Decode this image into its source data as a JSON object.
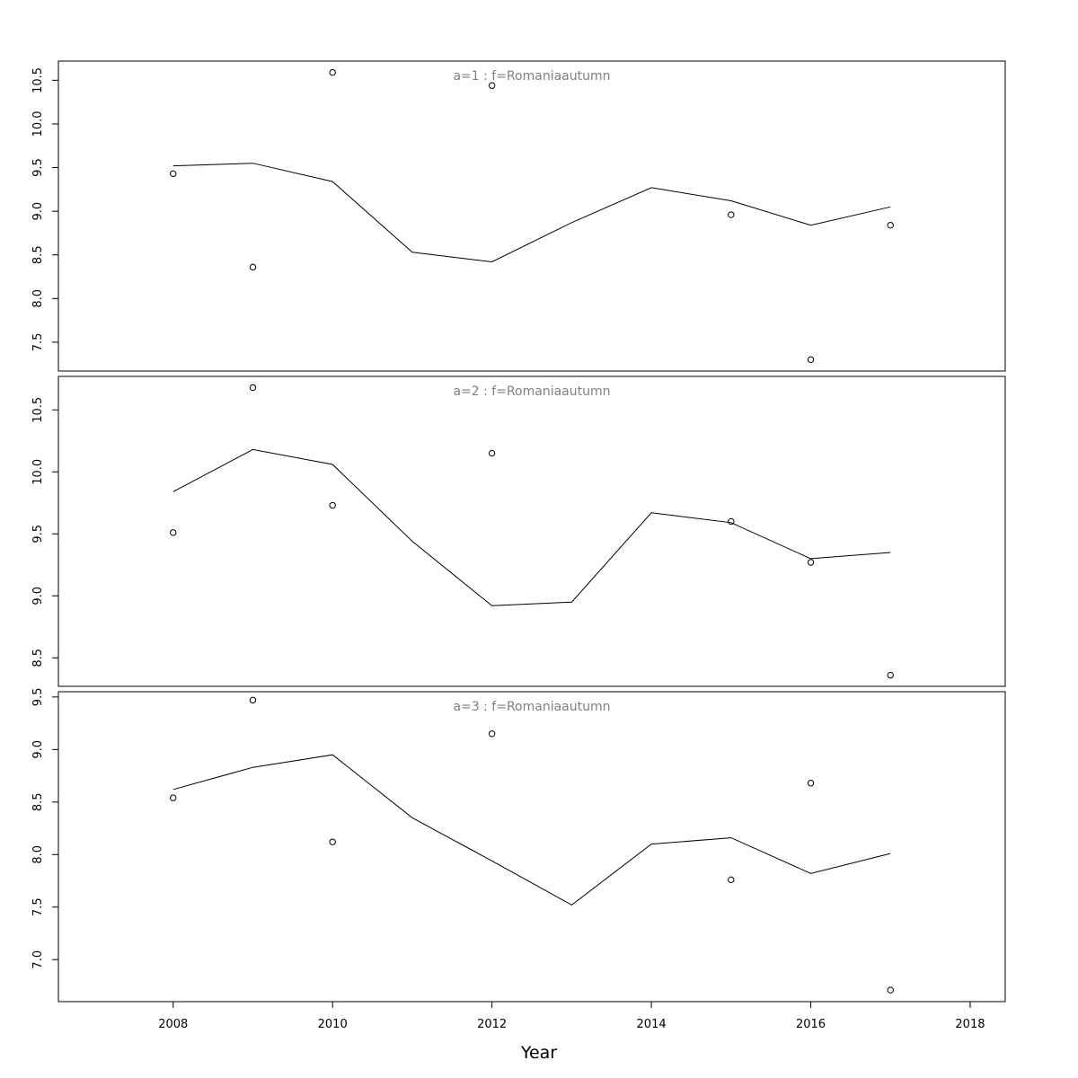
{
  "chart_data": {
    "type": "line",
    "xlabel": "Year",
    "xlim": [
      2006.56,
      2018.44
    ],
    "xticks": [
      2008,
      2010,
      2012,
      2014,
      2016,
      2018
    ],
    "x": [
      2008,
      2009,
      2010,
      2011,
      2012,
      2013,
      2014,
      2015,
      2016,
      2017
    ],
    "panels": [
      {
        "title": "a=1  :  f=Romaniaautumn",
        "ylim": [
          7.17,
          10.72
        ],
        "yticks": [
          "7.5",
          "8.0",
          "8.5",
          "9.0",
          "9.5",
          "10.0",
          "10.5"
        ],
        "fitted": [
          9.52,
          9.55,
          9.34,
          8.53,
          8.42,
          8.87,
          9.27,
          9.12,
          8.84,
          9.05
        ],
        "observed": [
          {
            "x": 2008,
            "y": 9.43
          },
          {
            "x": 2009,
            "y": 8.36
          },
          {
            "x": 2010,
            "y": 10.59
          },
          {
            "x": 2012,
            "y": 10.44
          },
          {
            "x": 2015,
            "y": 8.96
          },
          {
            "x": 2016,
            "y": 7.3
          },
          {
            "x": 2017,
            "y": 8.84
          }
        ]
      },
      {
        "title": "a=2  :  f=Romaniaautumn",
        "ylim": [
          8.27,
          10.77
        ],
        "yticks": [
          "8.5",
          "9.0",
          "9.5",
          "10.0",
          "10.5"
        ],
        "fitted": [
          9.84,
          10.18,
          10.06,
          9.44,
          8.92,
          8.95,
          9.67,
          9.59,
          9.3,
          9.35
        ],
        "observed": [
          {
            "x": 2008,
            "y": 9.51
          },
          {
            "x": 2009,
            "y": 10.68
          },
          {
            "x": 2010,
            "y": 9.73
          },
          {
            "x": 2012,
            "y": 10.15
          },
          {
            "x": 2015,
            "y": 9.6
          },
          {
            "x": 2016,
            "y": 9.27
          },
          {
            "x": 2017,
            "y": 8.36
          }
        ]
      },
      {
        "title": "a=3  :  f=Romaniaautumn",
        "ylim": [
          6.6,
          9.55
        ],
        "yticks": [
          "7.0",
          "7.5",
          "8.0",
          "8.5",
          "9.0",
          "9.5"
        ],
        "fitted": [
          8.62,
          8.83,
          8.95,
          8.35,
          7.94,
          7.52,
          8.1,
          8.16,
          7.82,
          8.01
        ],
        "observed": [
          {
            "x": 2008,
            "y": 8.54
          },
          {
            "x": 2009,
            "y": 9.47
          },
          {
            "x": 2010,
            "y": 8.12
          },
          {
            "x": 2012,
            "y": 9.15
          },
          {
            "x": 2015,
            "y": 7.76
          },
          {
            "x": 2016,
            "y": 8.68
          },
          {
            "x": 2017,
            "y": 6.71
          }
        ]
      }
    ]
  }
}
